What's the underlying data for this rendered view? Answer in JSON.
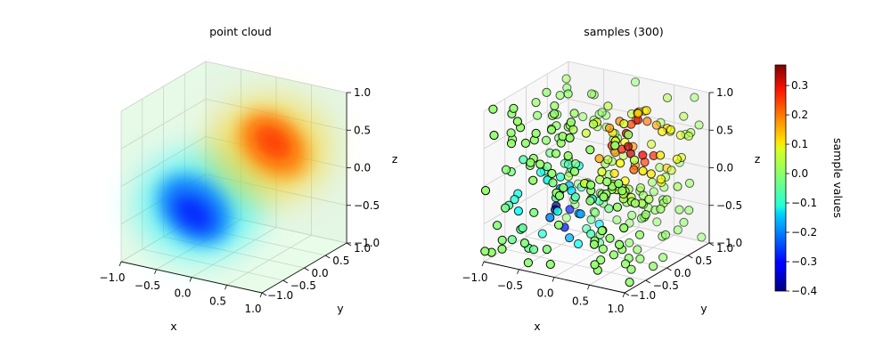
{
  "chart_data": [
    {
      "type": "scatter",
      "title": "point cloud",
      "xlabel": "x",
      "ylabel": "y",
      "zlabel": "z",
      "xlim": [
        -1.0,
        1.0
      ],
      "ylim": [
        -1.0,
        1.0
      ],
      "zlim": [
        -1.0,
        1.0
      ],
      "xticks": [
        "−1.0",
        "−0.5",
        "0.0",
        "0.5",
        "1.0"
      ],
      "yticks": [
        "−1.0",
        "−0.5",
        "0.0",
        "0.5",
        "1.0"
      ],
      "zticks": [
        "−1.0",
        "−0.5",
        "0.0",
        "0.5",
        "1.0"
      ],
      "colormap": "jet",
      "field": {
        "description_free": true,
        "positive_lobe": {
          "center": [
            0.5,
            0.1,
            0.5
          ],
          "peak": 0.35
        },
        "negative_lobe": {
          "center": [
            -0.5,
            -0.1,
            -0.5
          ],
          "peak": -0.4
        }
      }
    },
    {
      "type": "scatter",
      "title": "samples (300)",
      "xlabel": "x",
      "ylabel": "y",
      "zlabel": "z",
      "xlim": [
        -1.0,
        1.0
      ],
      "ylim": [
        -1.0,
        1.0
      ],
      "zlim": [
        -1.0,
        1.0
      ],
      "xticks": [
        "−1.0",
        "−0.5",
        "0.0",
        "0.5",
        "1.0"
      ],
      "yticks": [
        "−1.0",
        "−0.5",
        "0.0",
        "0.5",
        "1.0"
      ],
      "zticks": [
        "−1.0",
        "−0.5",
        "0.0",
        "0.5",
        "1.0"
      ],
      "colormap": "jet",
      "n_points": 300,
      "points_xyzv": [
        [
          -0.9,
          0.1,
          0.6,
          0.0
        ],
        [
          -0.8,
          -0.4,
          0.2,
          -0.05
        ],
        [
          -0.7,
          0.5,
          -0.3,
          0.02
        ],
        [
          -0.6,
          -0.8,
          0.8,
          0.0
        ],
        [
          -0.5,
          0.2,
          -0.6,
          -0.28
        ],
        [
          -0.4,
          -0.2,
          -0.2,
          -0.32
        ],
        [
          -0.35,
          0.6,
          0.4,
          0.01
        ],
        [
          -0.3,
          -0.6,
          -0.4,
          -0.2
        ],
        [
          -0.25,
          0.0,
          0.1,
          -0.1
        ],
        [
          -0.2,
          0.4,
          -0.8,
          -0.12
        ],
        [
          -0.15,
          -0.3,
          0.7,
          0.02
        ],
        [
          -0.1,
          0.8,
          0.0,
          0.03
        ],
        [
          0.0,
          -0.5,
          -0.1,
          -0.05
        ],
        [
          0.05,
          0.3,
          0.5,
          0.1
        ],
        [
          0.1,
          -0.1,
          0.3,
          0.15
        ],
        [
          0.2,
          0.6,
          0.6,
          0.2
        ],
        [
          0.25,
          -0.7,
          0.2,
          0.05
        ],
        [
          0.3,
          0.1,
          0.4,
          0.25
        ],
        [
          0.35,
          0.4,
          0.7,
          0.3
        ],
        [
          0.4,
          -0.3,
          0.6,
          0.22
        ],
        [
          0.45,
          0.0,
          0.5,
          0.33
        ],
        [
          0.5,
          0.7,
          -0.2,
          0.08
        ],
        [
          0.55,
          -0.6,
          -0.5,
          0.0
        ],
        [
          0.6,
          0.2,
          0.8,
          0.18
        ],
        [
          0.65,
          -0.2,
          0.3,
          0.2
        ],
        [
          0.7,
          0.5,
          0.1,
          0.12
        ],
        [
          0.75,
          -0.8,
          0.9,
          0.05
        ],
        [
          0.8,
          0.3,
          -0.7,
          0.0
        ],
        [
          0.9,
          -0.4,
          0.4,
          0.1
        ],
        [
          0.95,
          0.9,
          -0.9,
          0.0
        ],
        [
          -0.95,
          -0.9,
          -0.9,
          0.0
        ],
        [
          -0.85,
          0.7,
          0.9,
          0.01
        ]
      ]
    }
  ],
  "colorbar": {
    "label": "sample values",
    "min": -0.4,
    "max": 0.37,
    "ticks": [
      "−0.4",
      "−0.3",
      "−0.2",
      "−0.1",
      "0.0",
      "0.1",
      "0.2",
      "0.3"
    ],
    "tick_values": [
      -0.4,
      -0.3,
      -0.2,
      -0.1,
      0.0,
      0.1,
      0.2,
      0.3
    ]
  }
}
